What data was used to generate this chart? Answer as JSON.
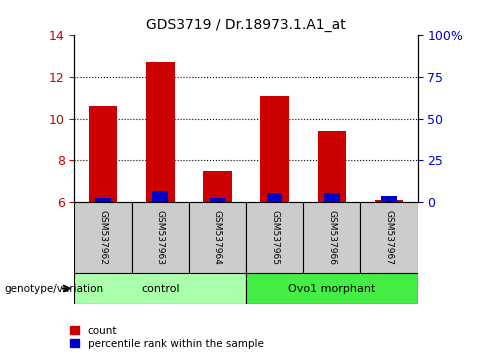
{
  "title": "GDS3719 / Dr.18973.1.A1_at",
  "samples": [
    "GSM537962",
    "GSM537963",
    "GSM537964",
    "GSM537965",
    "GSM537966",
    "GSM537967"
  ],
  "red_values": [
    10.6,
    12.7,
    7.5,
    11.1,
    9.4,
    6.1
  ],
  "blue_values": [
    6.2,
    6.5,
    6.2,
    6.4,
    6.4,
    6.3
  ],
  "bar_bottom": 6.0,
  "ylim": [
    6,
    14
  ],
  "yticks": [
    6,
    8,
    10,
    12,
    14
  ],
  "y2ticks": [
    0,
    25,
    50,
    75,
    100
  ],
  "y2labels": [
    "0",
    "25",
    "50",
    "75",
    "100%"
  ],
  "y2lim": [
    0,
    100
  ],
  "groups": [
    {
      "label": "control",
      "color": "#AAFFAA",
      "indices": [
        0,
        1,
        2
      ]
    },
    {
      "label": "Ovo1 morphant",
      "color": "#44EE44",
      "indices": [
        3,
        4,
        5
      ]
    }
  ],
  "genotype_label": "genotype/variation",
  "legend_red": "count",
  "legend_blue": "percentile rank within the sample",
  "red_color": "#CC0000",
  "blue_color": "#0000CC",
  "bar_width": 0.5,
  "sample_box_color": "#CCCCCC",
  "background_color": "#ffffff"
}
